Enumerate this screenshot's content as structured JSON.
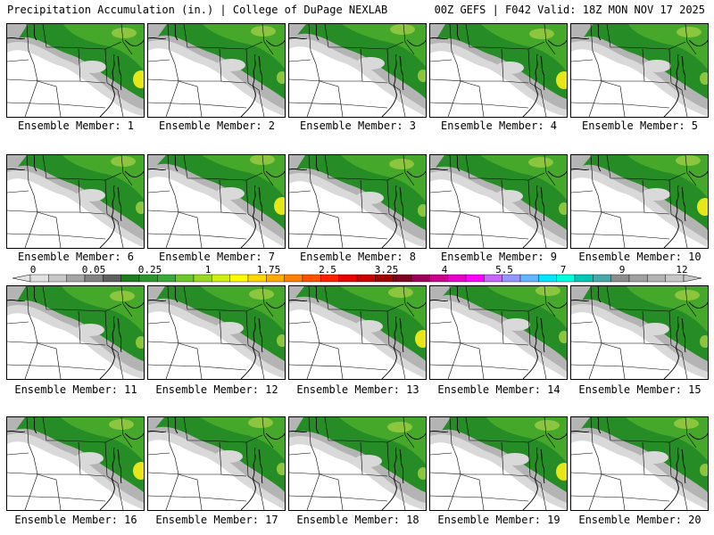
{
  "header": {
    "left": "Precipitation Accumulation (in.) | College of DuPage NEXLAB",
    "right": "00Z GEFS | F042 Valid: 18Z MON NOV 17 2025"
  },
  "members": [
    {
      "label": "Ensemble Member: 1"
    },
    {
      "label": "Ensemble Member: 2"
    },
    {
      "label": "Ensemble Member: 3"
    },
    {
      "label": "Ensemble Member: 4"
    },
    {
      "label": "Ensemble Member: 5"
    },
    {
      "label": "Ensemble Member: 6"
    },
    {
      "label": "Ensemble Member: 7"
    },
    {
      "label": "Ensemble Member: 8"
    },
    {
      "label": "Ensemble Member: 9"
    },
    {
      "label": "Ensemble Member: 10"
    },
    {
      "label": "Ensemble Member: 11"
    },
    {
      "label": "Ensemble Member: 12"
    },
    {
      "label": "Ensemble Member: 13"
    },
    {
      "label": "Ensemble Member: 14"
    },
    {
      "label": "Ensemble Member: 15"
    },
    {
      "label": "Ensemble Member: 16"
    },
    {
      "label": "Ensemble Member: 17"
    },
    {
      "label": "Ensemble Member: 18"
    },
    {
      "label": "Ensemble Member: 19"
    },
    {
      "label": "Ensemble Member: 20"
    }
  ],
  "scale": {
    "labels": [
      "0",
      "0.05",
      "0.25",
      "1",
      "1.75",
      "2.5",
      "3.25",
      "4",
      "5.5",
      "7",
      "9",
      "12"
    ],
    "colors": [
      "#e1e1e1",
      "#c8c8c8",
      "#a5a5a5",
      "#828282",
      "#5f5f5f",
      "#1e7d1e",
      "#2c962c",
      "#39a939",
      "#6cc82a",
      "#9ad91f",
      "#d2ef14",
      "#ffff00",
      "#ffd700",
      "#ffaa00",
      "#ff8000",
      "#ff5000",
      "#ff2000",
      "#e60000",
      "#c80000",
      "#a00000",
      "#800020",
      "#9c005a",
      "#c8008c",
      "#e600c8",
      "#ff00ff",
      "#c864ff",
      "#9696ff",
      "#64b4ff",
      "#00e6ff",
      "#00ffdc",
      "#00c8b4",
      "#46aaaa",
      "#8c8c8c",
      "#a0a0a0",
      "#b4b4b4",
      "#c8c8c8"
    ]
  },
  "map_colors": {
    "white": "#ffffff",
    "gray_light": "#d9d9d9",
    "gray_mid": "#b4b4b4",
    "green_dark": "#268c26",
    "green_mid": "#45a82a",
    "green_light": "#8cc63e",
    "yellow": "#e6e619"
  }
}
